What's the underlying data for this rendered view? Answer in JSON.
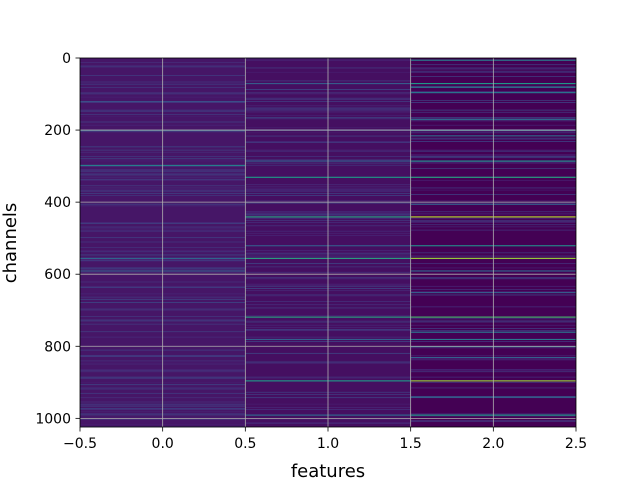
{
  "chart_data": {
    "type": "heatmap",
    "title": "",
    "xlabel": "features",
    "ylabel": "channels",
    "xlim": [
      -0.5,
      2.5
    ],
    "ylim": [
      1024,
      0
    ],
    "y_inverted": true,
    "colormap": "viridis",
    "n_rows": 1024,
    "columns": [
      0,
      1,
      2
    ],
    "x_ticks": [
      -0.5,
      0.0,
      0.5,
      1.0,
      1.5,
      2.0,
      2.5
    ],
    "x_tick_labels": [
      "−0.5",
      "0.0",
      "0.5",
      "1.0",
      "1.5",
      "2.0",
      "2.5"
    ],
    "y_ticks": [
      0,
      200,
      400,
      600,
      800,
      1000
    ],
    "y_tick_labels": [
      "0",
      "200",
      "400",
      "600",
      "800",
      "1000"
    ],
    "grid": true,
    "grid_color": "#b0b0b0",
    "background_value": 0.05,
    "column_base_values": [
      0.06,
      0.04,
      0.0
    ],
    "highlights": [
      {
        "row": 5,
        "col": 2,
        "value": 0.45
      },
      {
        "row": 70,
        "col": 1,
        "value": 0.3
      },
      {
        "row": 70,
        "col": 2,
        "value": 0.55
      },
      {
        "row": 80,
        "col": 2,
        "value": 0.45
      },
      {
        "row": 95,
        "col": 2,
        "value": 0.4
      },
      {
        "row": 120,
        "col": 0,
        "value": 0.25
      },
      {
        "row": 170,
        "col": 2,
        "value": 0.35
      },
      {
        "row": 200,
        "col": 0,
        "value": 0.3
      },
      {
        "row": 200,
        "col": 2,
        "value": 0.35
      },
      {
        "row": 215,
        "col": 2,
        "value": 0.35
      },
      {
        "row": 285,
        "col": 1,
        "value": 0.3
      },
      {
        "row": 285,
        "col": 2,
        "value": 0.5
      },
      {
        "row": 297,
        "col": 0,
        "value": 0.45
      },
      {
        "row": 330,
        "col": 1,
        "value": 0.55
      },
      {
        "row": 330,
        "col": 2,
        "value": 0.6
      },
      {
        "row": 405,
        "col": 2,
        "value": 0.3
      },
      {
        "row": 440,
        "col": 1,
        "value": 0.6
      },
      {
        "row": 440,
        "col": 2,
        "value": 0.9
      },
      {
        "row": 520,
        "col": 1,
        "value": 0.3
      },
      {
        "row": 520,
        "col": 2,
        "value": 0.5
      },
      {
        "row": 555,
        "col": 0,
        "value": 0.35
      },
      {
        "row": 555,
        "col": 1,
        "value": 0.6
      },
      {
        "row": 555,
        "col": 2,
        "value": 0.85
      },
      {
        "row": 590,
        "col": 0,
        "value": 0.3
      },
      {
        "row": 590,
        "col": 2,
        "value": 0.35
      },
      {
        "row": 650,
        "col": 2,
        "value": 0.3
      },
      {
        "row": 718,
        "col": 1,
        "value": 0.6
      },
      {
        "row": 718,
        "col": 2,
        "value": 0.7
      },
      {
        "row": 760,
        "col": 2,
        "value": 0.4
      },
      {
        "row": 780,
        "col": 1,
        "value": 0.3
      },
      {
        "row": 780,
        "col": 2,
        "value": 0.4
      },
      {
        "row": 800,
        "col": 2,
        "value": 0.35
      },
      {
        "row": 830,
        "col": 2,
        "value": 0.3
      },
      {
        "row": 895,
        "col": 1,
        "value": 0.55
      },
      {
        "row": 895,
        "col": 2,
        "value": 0.85
      },
      {
        "row": 940,
        "col": 2,
        "value": 0.35
      },
      {
        "row": 990,
        "col": 1,
        "value": 0.35
      },
      {
        "row": 990,
        "col": 2,
        "value": 0.55
      }
    ]
  }
}
